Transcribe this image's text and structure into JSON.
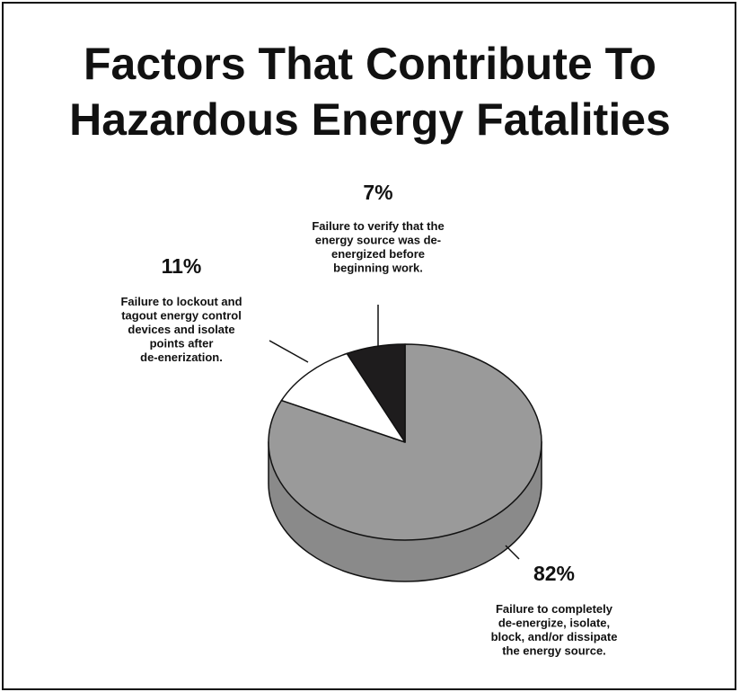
{
  "title_lines": [
    "Factors That Contribute To",
    "Hazardous Energy Fatalities"
  ],
  "colors": {
    "main": "#9a9a9a",
    "main_side": "#8a8a8a",
    "white_slice": "#ffffff",
    "dark_slice": "#1e1c1d",
    "outline": "#111111"
  },
  "chart_data": {
    "type": "pie",
    "title": "Factors That Contribute To Hazardous Energy Fatalities",
    "style": "3d",
    "slices": [
      {
        "value": 82,
        "percent_label": "82%",
        "description": [
          "Failure to completely",
          "de-energize, isolate,",
          "block, and/or dissipate",
          "the energy source."
        ],
        "color": "#9a9a9a"
      },
      {
        "value": 11,
        "percent_label": "11%",
        "description": [
          "Failure to lockout and",
          "tagout energy control",
          "devices and isolate",
          "points after",
          "de-enerization."
        ],
        "color": "#ffffff"
      },
      {
        "value": 7,
        "percent_label": "7%",
        "description": [
          "Failure to verify that the",
          "energy source was de-",
          "energized before",
          "beginning work."
        ],
        "color": "#1e1c1d"
      }
    ]
  }
}
